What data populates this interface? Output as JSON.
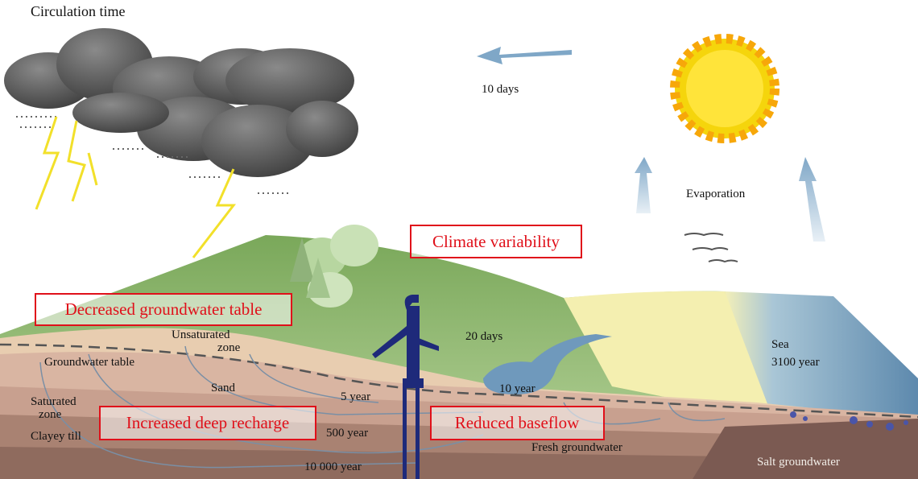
{
  "title": "Circulation time",
  "labels": {
    "atmosphere": "10 days",
    "evaporation": "Evaporation",
    "river": "20 days",
    "sea": [
      "Sea",
      "3100 year"
    ],
    "unsaturated_zone": [
      "Unsaturated",
      "zone"
    ],
    "groundwater_table": "Groundwater table",
    "sand": "Sand",
    "saturated_zone": [
      "Saturated",
      "zone"
    ],
    "clayey_till": "Clayey till",
    "five_year": "5 year",
    "ten_year": "10 year",
    "five_hundred_year": "500 year",
    "ten_thousand_year": "10 000 year",
    "fresh_groundwater": "Fresh groundwater",
    "salt_groundwater": "Salt groundwater"
  },
  "highlights": [
    "Climate variability",
    "Decreased groundwater table",
    "Increased deep recharge",
    "Reduced baseflow"
  ]
}
